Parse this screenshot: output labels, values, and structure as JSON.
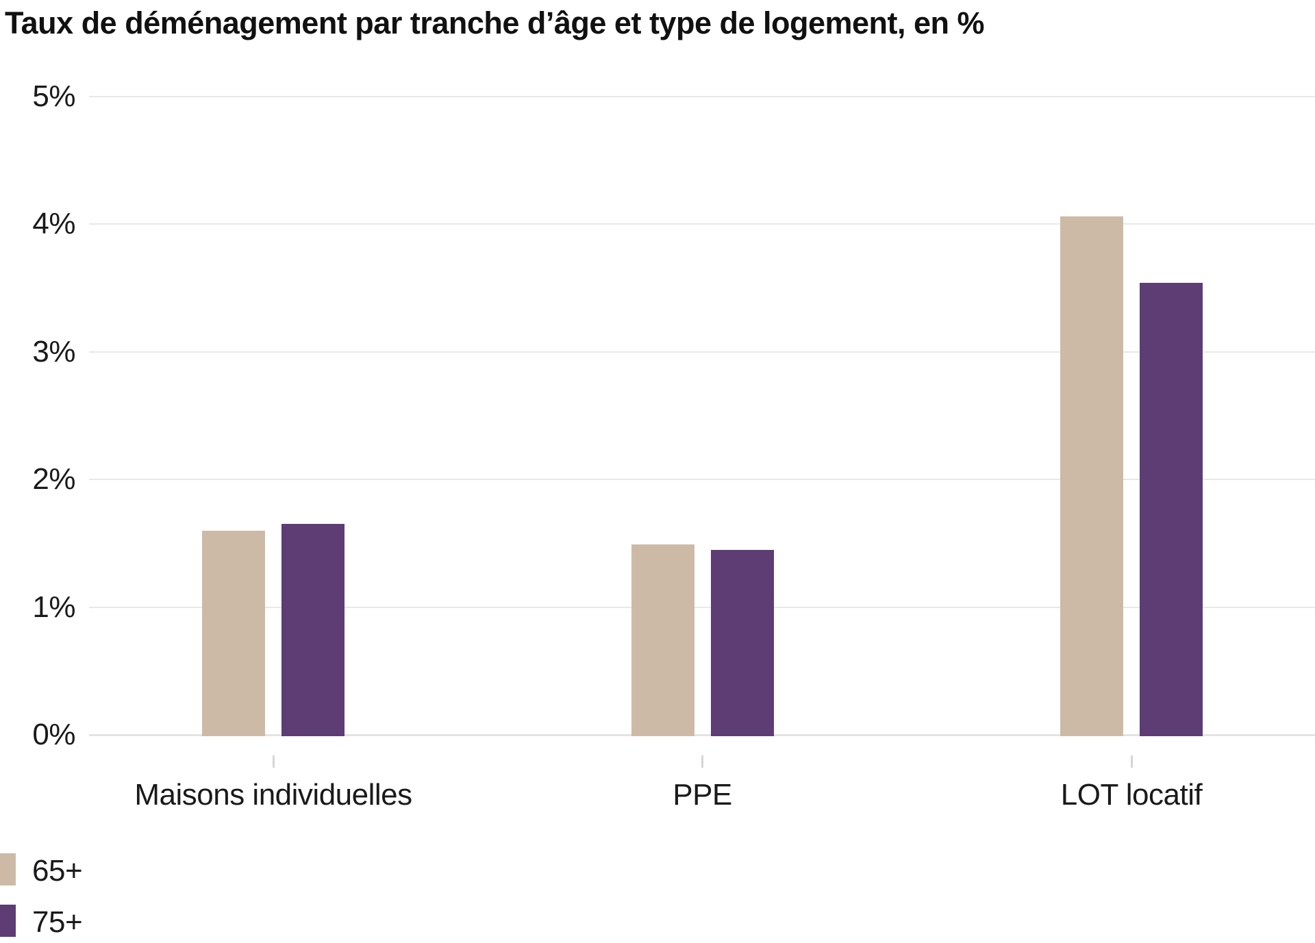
{
  "chart_data": {
    "type": "bar",
    "title": "Taux de déménagement par tranche d’âge et type de logement, en %",
    "categories": [
      "Maisons individuelles",
      "PPE",
      "LOT locatif"
    ],
    "series": [
      {
        "name": "65+",
        "color": "#CDBAA6",
        "values": [
          1.6,
          1.49,
          4.06
        ]
      },
      {
        "name": "75+",
        "color": "#5E3C74",
        "values": [
          1.65,
          1.45,
          3.54
        ]
      }
    ],
    "xlabel": "",
    "ylabel": "",
    "value_unit": "%",
    "ylim": [
      0,
      5
    ],
    "yticks": [
      0,
      1,
      2,
      3,
      4,
      5
    ],
    "ytick_labels": [
      "0%",
      "1%",
      "2%",
      "3%",
      "4%",
      "5%"
    ],
    "grid": true,
    "legend_position": "bottom-left",
    "colors": {
      "text": "#1a1a1a",
      "gridline": "#e8e8e8",
      "axis_line": "#e3e3e3",
      "tick": "#d6d6d6",
      "background": "#ffffff"
    }
  }
}
